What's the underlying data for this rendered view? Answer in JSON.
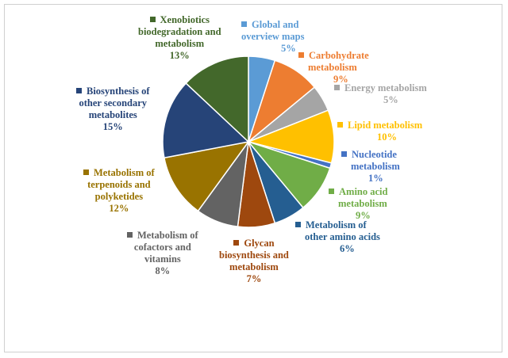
{
  "chart_data": {
    "type": "pie",
    "title": "",
    "legend": "none",
    "slices": [
      {
        "label_lines": [
          "Global and",
          "overview maps"
        ],
        "percent_label": "5%",
        "value": 5,
        "color": "#5B9BD5"
      },
      {
        "label_lines": [
          "Carbohydrate",
          "metabolism"
        ],
        "percent_label": "9%",
        "value": 9,
        "color": "#ED7D31"
      },
      {
        "label_lines": [
          "Energy metabolism"
        ],
        "percent_label": "5%",
        "value": 5,
        "color": "#A5A5A5"
      },
      {
        "label_lines": [
          "Lipid metabolism"
        ],
        "percent_label": "10%",
        "value": 10,
        "color": "#FFC000"
      },
      {
        "label_lines": [
          "Nucleotide",
          "metabolism"
        ],
        "percent_label": "1%",
        "value": 1,
        "color": "#4472C4"
      },
      {
        "label_lines": [
          "Amino acid",
          "metabolism"
        ],
        "percent_label": "9%",
        "value": 9,
        "color": "#70AD47"
      },
      {
        "label_lines": [
          "Metabolism of",
          "other amino acids"
        ],
        "percent_label": "6%",
        "value": 6,
        "color": "#255E91"
      },
      {
        "label_lines": [
          "Glycan",
          "biosynthesis and",
          "metabolism"
        ],
        "percent_label": "7%",
        "value": 7,
        "color": "#9E480E"
      },
      {
        "label_lines": [
          "Metabolism of",
          "cofactors and",
          "vitamins"
        ],
        "percent_label": "8%",
        "value": 8,
        "color": "#636363"
      },
      {
        "label_lines": [
          "Metabolism of",
          "terpenoids and",
          "polyketides"
        ],
        "percent_label": "12%",
        "value": 12,
        "color": "#997300"
      },
      {
        "label_lines": [
          "Biosynthesis of",
          "other secondary",
          "metabolites"
        ],
        "percent_label": "15%",
        "value": 15,
        "color": "#264478"
      },
      {
        "label_lines": [
          "Xenobiotics",
          "biodegradation and",
          "metabolism"
        ],
        "percent_label": "13%",
        "value": 13,
        "color": "#43682B"
      }
    ]
  }
}
